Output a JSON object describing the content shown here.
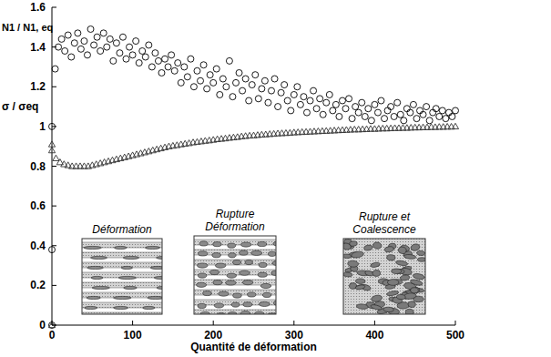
{
  "chart_data": {
    "type": "scatter",
    "x_label": "Quantité de déformation",
    "xlim": [
      0,
      500
    ],
    "xticks": [
      0,
      100,
      200,
      300,
      400,
      500
    ],
    "ylim": [
      0,
      1.6
    ],
    "yticks": [
      0,
      0.2,
      0.4,
      0.6,
      0.8,
      1,
      1.2,
      1.4,
      1.6
    ],
    "annotations": [
      "Déformation",
      "Rupture Déformation",
      "Rupture et Coalescence"
    ],
    "series": [
      {
        "name": "N1 / N1, eq",
        "marker": "circle",
        "color": "#000000",
        "x": [
          0,
          0,
          0,
          4,
          8,
          12,
          16,
          20,
          24,
          28,
          32,
          36,
          40,
          44,
          48,
          52,
          56,
          60,
          64,
          68,
          72,
          76,
          80,
          84,
          88,
          92,
          96,
          100,
          104,
          108,
          112,
          116,
          120,
          124,
          128,
          132,
          136,
          140,
          144,
          148,
          152,
          156,
          160,
          164,
          168,
          172,
          176,
          180,
          184,
          188,
          192,
          196,
          200,
          204,
          208,
          212,
          216,
          220,
          224,
          228,
          232,
          236,
          240,
          244,
          248,
          252,
          256,
          260,
          264,
          268,
          272,
          276,
          280,
          284,
          288,
          292,
          296,
          300,
          304,
          308,
          312,
          316,
          320,
          324,
          328,
          332,
          336,
          340,
          344,
          348,
          352,
          356,
          360,
          364,
          368,
          372,
          376,
          380,
          384,
          388,
          392,
          396,
          400,
          404,
          408,
          412,
          416,
          420,
          424,
          428,
          432,
          436,
          440,
          444,
          448,
          452,
          456,
          460,
          464,
          468,
          472,
          476,
          480,
          484,
          488,
          492,
          496,
          500
        ],
        "values": [
          1,
          0.38,
          0,
          1.29,
          1.4,
          1.44,
          1.38,
          1.46,
          1.35,
          1.42,
          1.47,
          1.39,
          1.43,
          1.36,
          1.49,
          1.41,
          1.45,
          1.38,
          1.47,
          1.4,
          1.44,
          1.33,
          1.42,
          1.37,
          1.45,
          1.34,
          1.4,
          1.36,
          1.43,
          1.32,
          1.38,
          1.35,
          1.41,
          1.3,
          1.37,
          1.33,
          1.27,
          1.34,
          1.3,
          1.36,
          1.28,
          1.32,
          1.22,
          1.3,
          1.25,
          1.34,
          1.2,
          1.28,
          1.23,
          1.31,
          1.19,
          1.26,
          1.22,
          1.29,
          1.16,
          1.24,
          1.2,
          1.33,
          1.15,
          1.22,
          1.27,
          1.18,
          1.24,
          1.13,
          1.21,
          1.26,
          1.14,
          1.19,
          1.23,
          1.12,
          1.18,
          1.24,
          1.1,
          1.17,
          1.21,
          1.13,
          1.08,
          1.16,
          1.2,
          1.11,
          1.15,
          1.07,
          1.13,
          1.18,
          1.09,
          1.14,
          1.06,
          1.12,
          1.16,
          1.08,
          1.11,
          1.05,
          1.13,
          1.09,
          1.14,
          1.04,
          1.1,
          1.07,
          1.12,
          1.05,
          1.09,
          1.03,
          1.11,
          1.07,
          1.13,
          1.04,
          1.08,
          1.1,
          1.05,
          1.12,
          1.06,
          1.03,
          1.09,
          1.07,
          1.11,
          1.04,
          1.08,
          1.06,
          1.1,
          1.03,
          1.07,
          1.09,
          1.05,
          1.08,
          1.04,
          1.07,
          1.05,
          1.08
        ]
      },
      {
        "name": "σ / σeq",
        "marker": "triangle",
        "color": "#333333",
        "x": [
          0,
          0,
          0,
          5,
          10,
          15,
          20,
          25,
          30,
          35,
          40,
          45,
          50,
          55,
          60,
          65,
          70,
          75,
          80,
          85,
          90,
          95,
          100,
          105,
          110,
          115,
          120,
          125,
          130,
          135,
          140,
          145,
          150,
          155,
          160,
          165,
          170,
          175,
          180,
          185,
          190,
          195,
          200,
          205,
          210,
          215,
          220,
          225,
          230,
          235,
          240,
          245,
          250,
          255,
          260,
          265,
          270,
          275,
          280,
          285,
          290,
          295,
          300,
          305,
          310,
          315,
          320,
          325,
          330,
          335,
          340,
          345,
          350,
          355,
          360,
          365,
          370,
          375,
          380,
          385,
          390,
          395,
          400,
          405,
          410,
          415,
          420,
          425,
          430,
          435,
          440,
          445,
          450,
          455,
          460,
          465,
          470,
          475,
          480,
          485,
          490,
          495,
          500
        ],
        "values": [
          0,
          0.91,
          0.88,
          0.84,
          0.82,
          0.81,
          0.805,
          0.8,
          0.8,
          0.8,
          0.8,
          0.8,
          0.805,
          0.81,
          0.815,
          0.82,
          0.825,
          0.83,
          0.835,
          0.84,
          0.845,
          0.85,
          0.855,
          0.86,
          0.865,
          0.87,
          0.875,
          0.88,
          0.885,
          0.89,
          0.895,
          0.9,
          0.903,
          0.906,
          0.91,
          0.913,
          0.916,
          0.92,
          0.922,
          0.925,
          0.928,
          0.93,
          0.933,
          0.936,
          0.938,
          0.94,
          0.943,
          0.945,
          0.947,
          0.95,
          0.952,
          0.954,
          0.955,
          0.957,
          0.959,
          0.96,
          0.962,
          0.963,
          0.965,
          0.966,
          0.967,
          0.968,
          0.97,
          0.971,
          0.972,
          0.973,
          0.974,
          0.975,
          0.976,
          0.977,
          0.978,
          0.979,
          0.98,
          0.981,
          0.982,
          0.983,
          0.984,
          0.985,
          0.985,
          0.986,
          0.987,
          0.988,
          0.988,
          0.989,
          0.99,
          0.99,
          0.991,
          0.992,
          0.992,
          0.993,
          0.993,
          0.994,
          0.995,
          0.995,
          0.996,
          0.996,
          0.997,
          0.997,
          0.998,
          0.998,
          0.999,
          0.999,
          1
        ]
      }
    ]
  }
}
